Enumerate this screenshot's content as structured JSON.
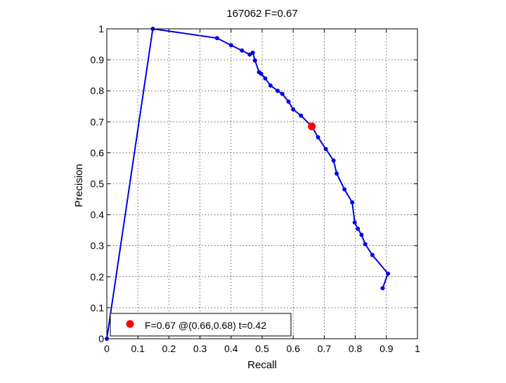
{
  "chart_data": {
    "type": "line",
    "title": "167062 F=0.67",
    "xlabel": "Recall",
    "ylabel": "Precision",
    "xlim": [
      0,
      1
    ],
    "ylim": [
      0,
      1
    ],
    "xticks": [
      "0",
      "0.1",
      "0.2",
      "0.3",
      "0.4",
      "0.5",
      "0.6",
      "0.7",
      "0.8",
      "0.9",
      "1"
    ],
    "yticks": [
      "0",
      "0.1",
      "0.2",
      "0.3",
      "0.4",
      "0.5",
      "0.6",
      "0.7",
      "0.8",
      "0.9",
      "1"
    ],
    "grid": true,
    "legend_location": "bottom-left",
    "series": [
      {
        "color": "#0000e6",
        "x": [
          0,
          0.148,
          0.355,
          0.4,
          0.435,
          0.46,
          0.47,
          0.477,
          0.49,
          0.497,
          0.51,
          0.527,
          0.55,
          0.565,
          0.585,
          0.6,
          0.625,
          0.66,
          0.68,
          0.705,
          0.73,
          0.74,
          0.765,
          0.79,
          0.798,
          0.808,
          0.82,
          0.832,
          0.855,
          0.905,
          0.888
        ],
        "y": [
          0,
          1,
          0.97,
          0.947,
          0.93,
          0.917,
          0.923,
          0.898,
          0.86,
          0.855,
          0.84,
          0.817,
          0.8,
          0.79,
          0.765,
          0.74,
          0.72,
          0.685,
          0.65,
          0.612,
          0.575,
          0.533,
          0.482,
          0.44,
          0.375,
          0.355,
          0.335,
          0.305,
          0.27,
          0.21,
          0.163
        ]
      }
    ],
    "highlight_point": {
      "x": 0.66,
      "y": 0.685,
      "color": "#ff0000"
    },
    "legend": {
      "label": "F=0.67 @(0.66,0.68) t=0.42"
    }
  }
}
